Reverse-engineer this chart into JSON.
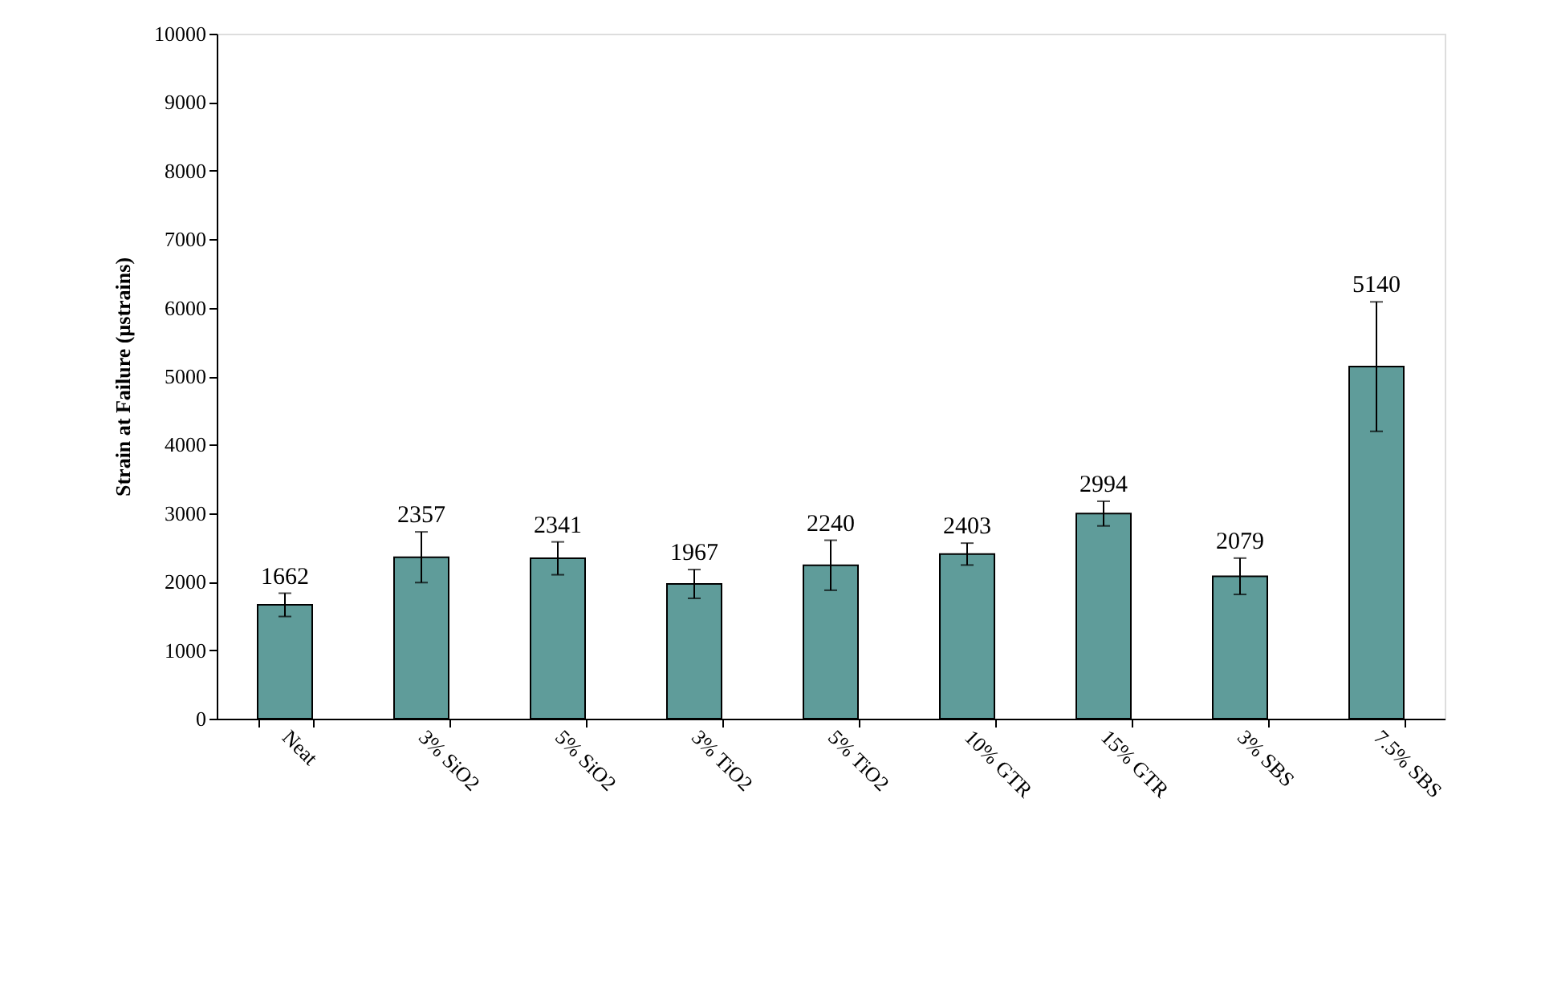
{
  "chart_data": {
    "type": "bar",
    "ylabel": "Strain at Failure (μstrains)",
    "categories": [
      "Neat",
      "3% SiO2",
      "5% SiO2",
      "3% TiO2",
      "5% TiO2",
      "10% GTR",
      "15% GTR",
      "3% SBS",
      "7.5% SBS"
    ],
    "values": [
      1662,
      2357,
      2341,
      1967,
      2240,
      2403,
      2994,
      2079,
      5140
    ],
    "errors": [
      170,
      370,
      240,
      210,
      365,
      160,
      180,
      265,
      945
    ],
    "color": "#5f9c9a",
    "ylim": [
      0,
      10000
    ],
    "yticks": [
      0,
      1000,
      2000,
      3000,
      4000,
      5000,
      6000,
      7000,
      8000,
      9000,
      10000
    ],
    "grid": false,
    "data_labels": true
  }
}
